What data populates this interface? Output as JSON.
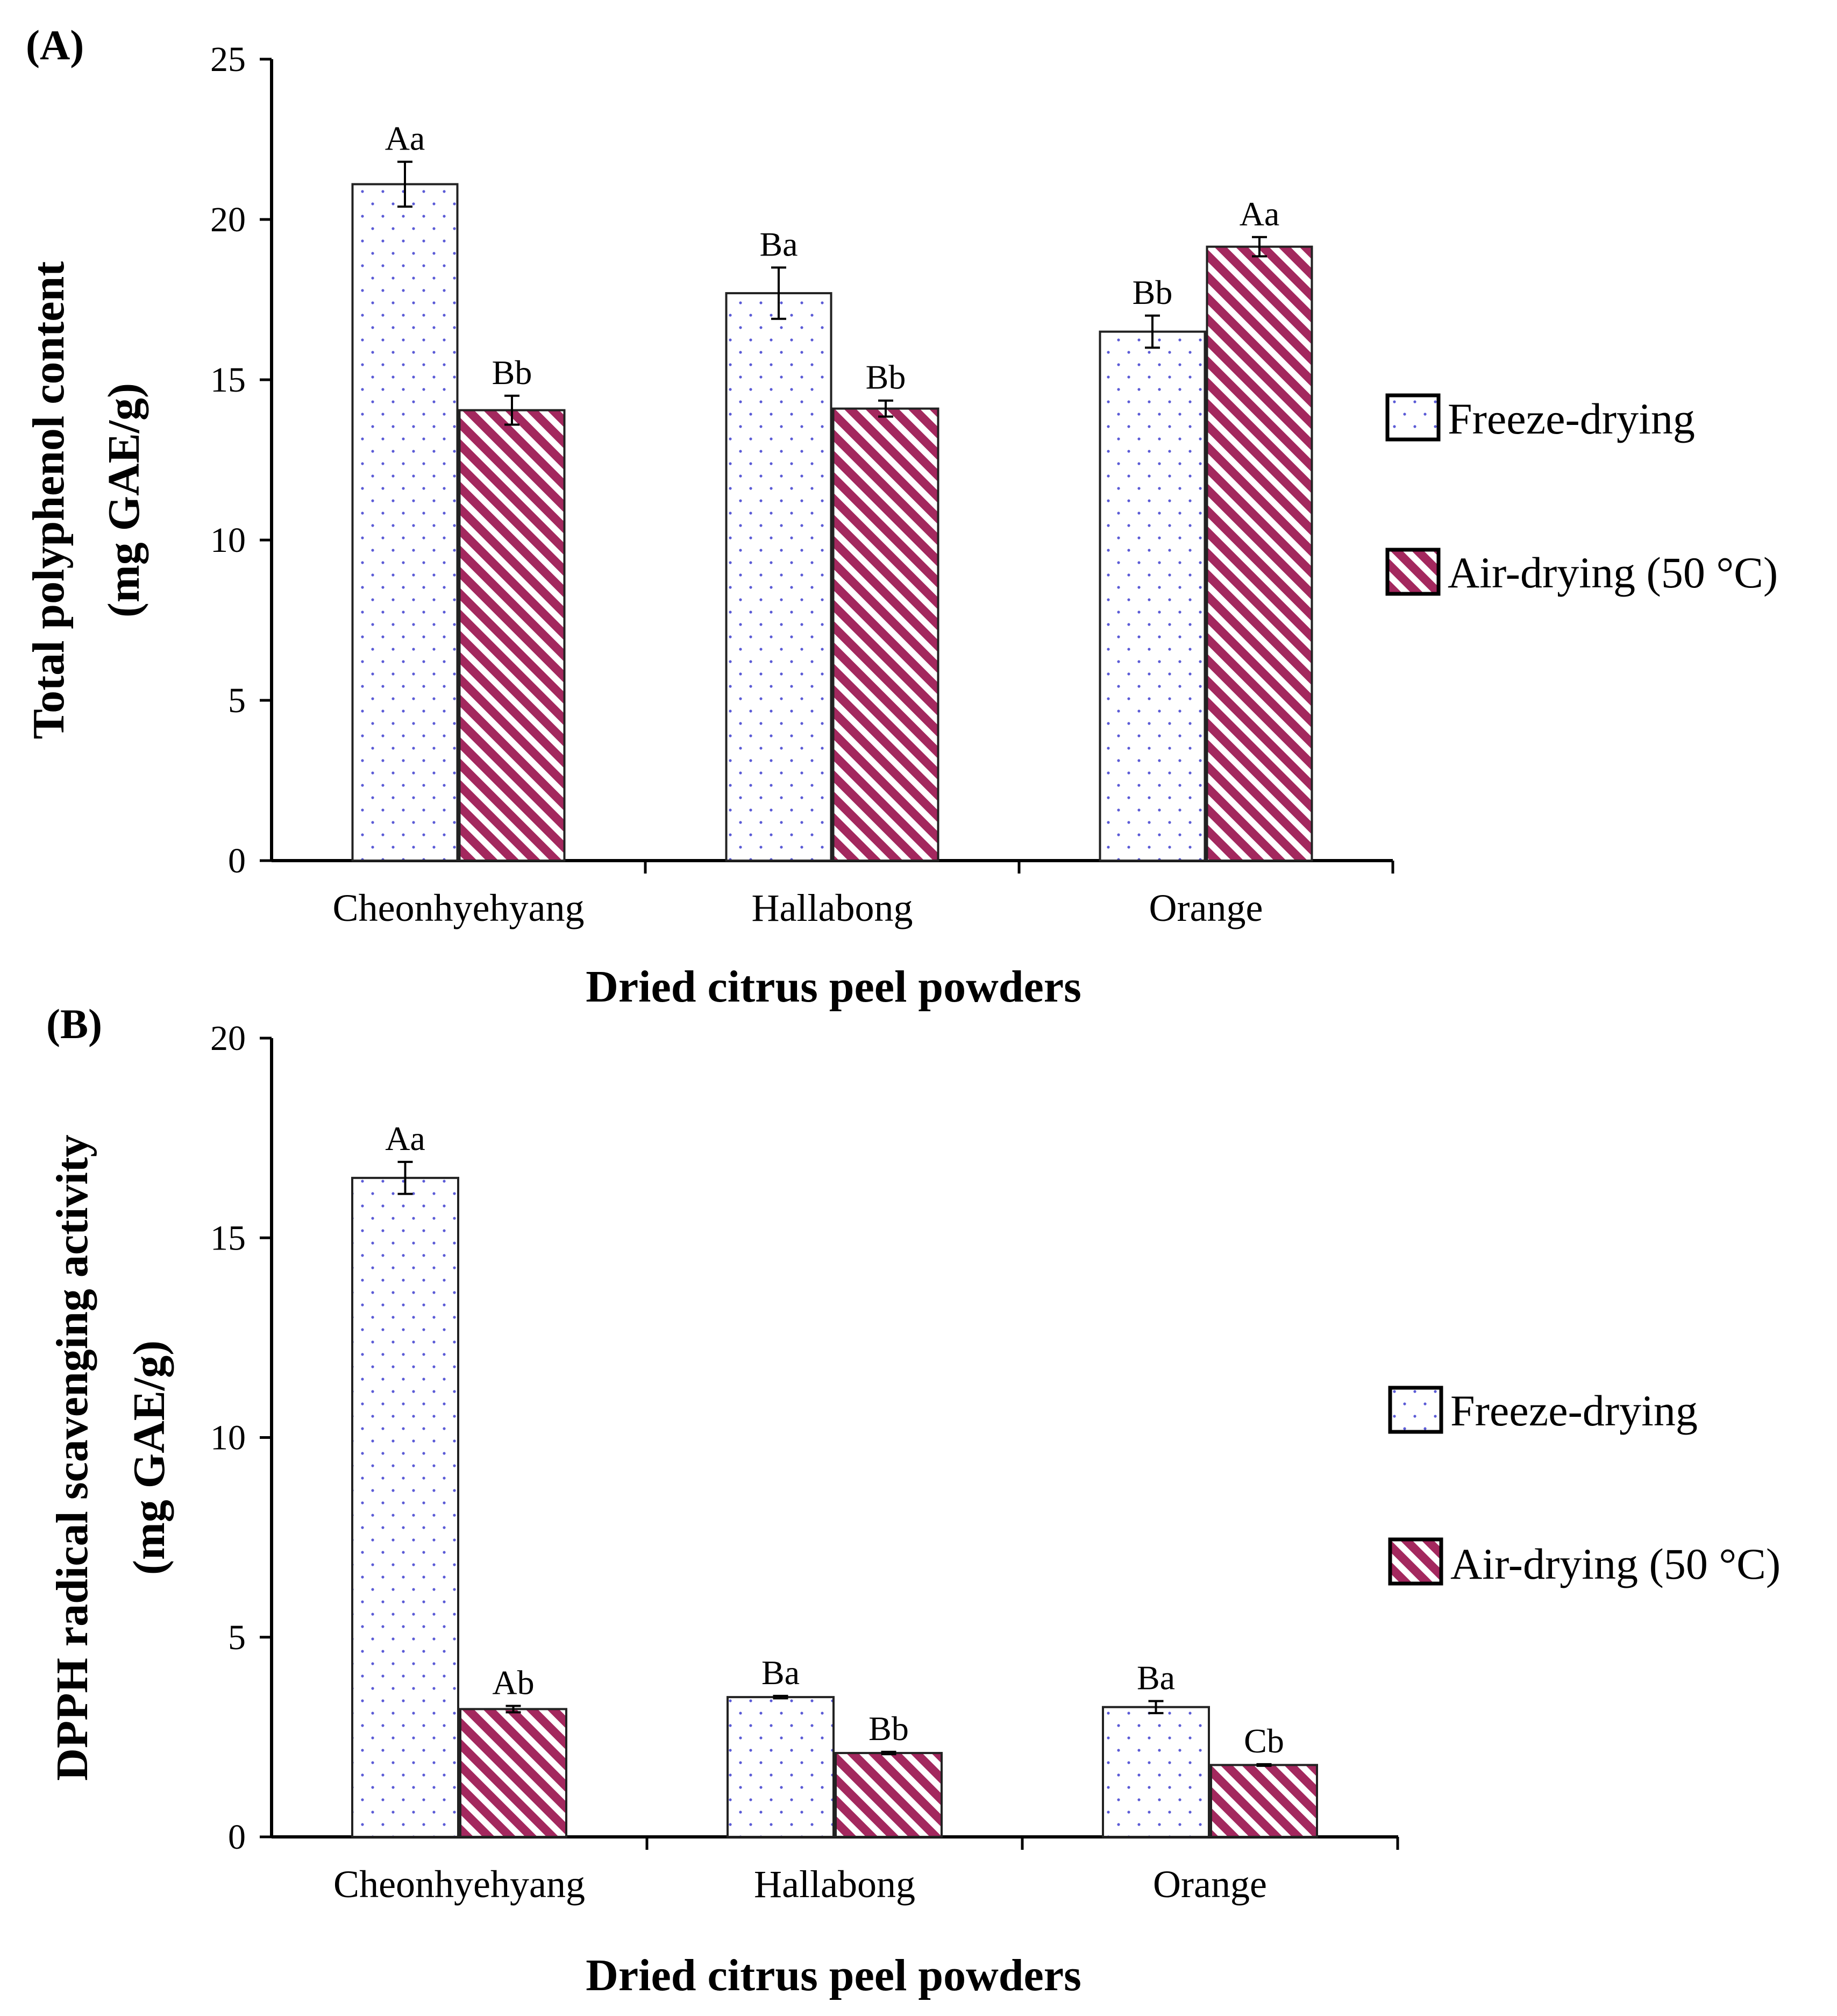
{
  "colors": {
    "air_drying": "#a3285e",
    "freeze_dots": "#5b5bd6",
    "axis": "#000000",
    "bar_outline": "#333333"
  },
  "legend": {
    "freeze": "Freeze-drying",
    "air": "Air-drying (50 °C)"
  },
  "chart_data": [
    {
      "panel_label": "(A)",
      "type": "bar",
      "categories": [
        "Cheonhyehyang",
        "Hallabong",
        "Orange"
      ],
      "xlabel": "Dried citrus peel powders",
      "ylabel_line1": "Total polyphenol content",
      "ylabel_line2": "(mg GAE/g)",
      "ylim": [
        0,
        25
      ],
      "yticks": [
        0,
        5,
        10,
        15,
        20,
        25
      ],
      "grid": false,
      "legend_position": "right",
      "series": [
        {
          "name": "Freeze-drying",
          "pattern": "dots",
          "values": [
            21.1,
            17.7,
            16.5
          ],
          "errors": [
            0.7,
            0.8,
            0.5
          ],
          "labels": [
            "Aa",
            "Ba",
            "Bb"
          ]
        },
        {
          "name": "Air-drying (50 °C)",
          "pattern": "diagonal-stripes",
          "values": [
            14.05,
            14.1,
            19.15
          ],
          "errors": [
            0.45,
            0.25,
            0.3
          ],
          "labels": [
            "Bb",
            "Bb",
            "Aa"
          ]
        }
      ]
    },
    {
      "panel_label": "(B)",
      "type": "bar",
      "categories": [
        "Cheonhyehyang",
        "Hallabong",
        "Orange"
      ],
      "xlabel": "Dried citrus peel powders",
      "ylabel_line1": "DPPH radical scavenging activity",
      "ylabel_line2": "(mg GAE/g)",
      "ylim": [
        0,
        20
      ],
      "yticks": [
        0,
        5,
        10,
        15,
        20
      ],
      "grid": false,
      "legend_position": "right",
      "series": [
        {
          "name": "Freeze-drying",
          "pattern": "dots",
          "values": [
            16.5,
            3.5,
            3.25
          ],
          "errors": [
            0.4,
            0.03,
            0.15
          ],
          "labels": [
            "Aa",
            "Ba",
            "Ba"
          ]
        },
        {
          "name": "Air-drying (50 °C)",
          "pattern": "diagonal-stripes",
          "values": [
            3.2,
            2.1,
            1.8
          ],
          "errors": [
            0.08,
            0.03,
            0.02
          ],
          "labels": [
            "Ab",
            "Bb",
            "Cb"
          ]
        }
      ]
    }
  ]
}
